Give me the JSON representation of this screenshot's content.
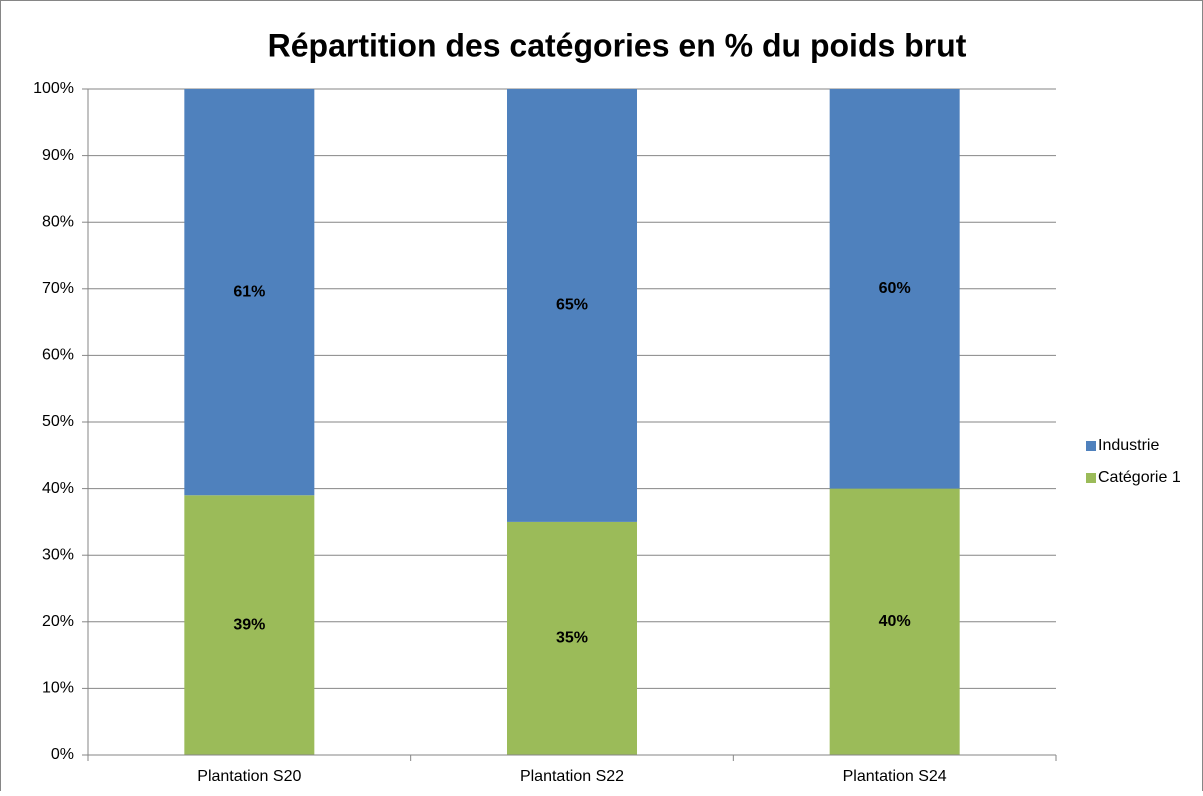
{
  "chart_data": {
    "type": "stacked_bar",
    "title": "Répartition des catégories en % du poids brut",
    "categories": [
      "Plantation S20",
      "Plantation S22",
      "Plantation S24"
    ],
    "series": [
      {
        "name": "Industrie",
        "color": "#4f81bd",
        "values": [
          61,
          65,
          60
        ],
        "value_labels": [
          "61%",
          "65%",
          "60%"
        ]
      },
      {
        "name": "Catégorie 1",
        "color": "#9bbb59",
        "values": [
          39,
          35,
          40
        ],
        "value_labels": [
          "39%",
          "35%",
          "40%"
        ]
      }
    ],
    "ylim": [
      0,
      100
    ],
    "yticks": [
      {
        "value": 0,
        "label": "0%"
      },
      {
        "value": 10,
        "label": "10%"
      },
      {
        "value": 20,
        "label": "20%"
      },
      {
        "value": 30,
        "label": "30%"
      },
      {
        "value": 40,
        "label": "40%"
      },
      {
        "value": 50,
        "label": "50%"
      },
      {
        "value": 60,
        "label": "60%"
      },
      {
        "value": 70,
        "label": "70%"
      },
      {
        "value": 80,
        "label": "80%"
      },
      {
        "value": 90,
        "label": "90%"
      },
      {
        "value": 100,
        "label": "100%"
      }
    ],
    "grid": true,
    "legend": "right"
  }
}
